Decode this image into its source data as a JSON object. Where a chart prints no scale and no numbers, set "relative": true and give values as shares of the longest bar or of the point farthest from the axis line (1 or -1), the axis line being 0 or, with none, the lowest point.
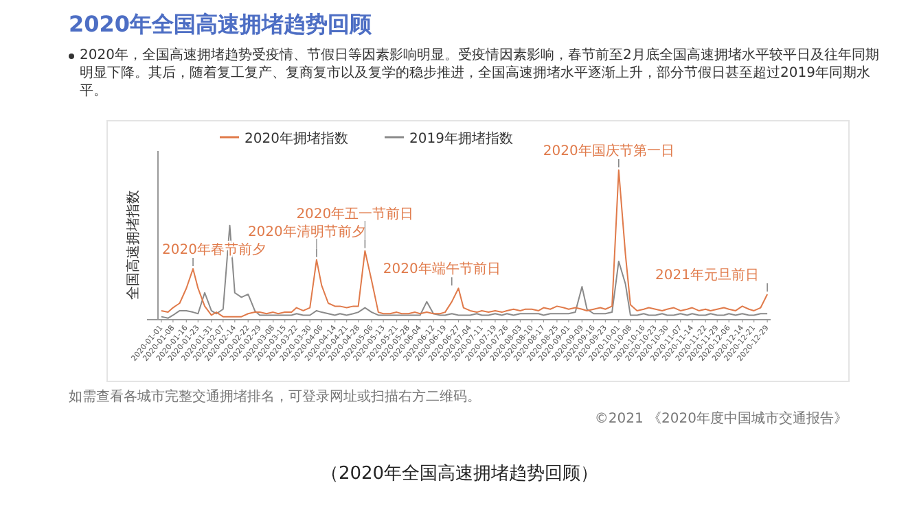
{
  "chart_data": {
    "type": "line",
    "title": "2020年全国高速拥堵趋势回顾",
    "subtitle": "2020年，全国高速拥堵趋势受疫情、节假日等因素影响明显。受疫情因素影响，春节前至2月底全国高速拥堵水平较平日及往年同期明显下降。其后，随着复工复产、复商复市以及复学的稳步推进，全国高速拥堵水平逐渐上升，部分节假日甚至超过2019年同期水平。",
    "ylabel": "全国高速拥堵指数",
    "relative": true,
    "legend": "top",
    "tick_labels": "x",
    "xlim": [
      "2019-12-30",
      "2020-12-31"
    ],
    "xticks": [
      "2020-01-01",
      "2020-01-08",
      "2020-01-16",
      "2020-01-23",
      "2020-01-31",
      "2020-02-07",
      "2020-02-14",
      "2020-02-22",
      "2020-02-29",
      "2020-03-08",
      "2020-03-15",
      "2020-03-22",
      "2020-03-30",
      "2020-04-06",
      "2020-04-14",
      "2020-04-21",
      "2020-04-28",
      "2020-05-06",
      "2020-05-13",
      "2020-05-21",
      "2020-05-28",
      "2020-06-04",
      "2020-06-12",
      "2020-06-19",
      "2020-06-27",
      "2020-07-04",
      "2020-07-11",
      "2020-07-19",
      "2020-07-26",
      "2020-08-03",
      "2020-08-10",
      "2020-08-17",
      "2020-08-25",
      "2020-09-01",
      "2020-09-09",
      "2020-09-16",
      "2020-09-23",
      "2020-10-01",
      "2020-10-08",
      "2020-10-16",
      "2020-10-23",
      "2020-10-30",
      "2020-11-07",
      "2020-11-14",
      "2020-11-22",
      "2020-11-29",
      "2020-12-06",
      "2020-12-14",
      "2020-12-21",
      "2020-12-29"
    ],
    "x": [
      "2020-01-01",
      "2020-01-05",
      "2020-01-08",
      "2020-01-12",
      "2020-01-16",
      "2020-01-20",
      "2020-01-23",
      "2020-01-27",
      "2020-01-31",
      "2020-02-03",
      "2020-02-07",
      "2020-02-11",
      "2020-02-14",
      "2020-02-18",
      "2020-02-22",
      "2020-02-26",
      "2020-02-29",
      "2020-03-04",
      "2020-03-08",
      "2020-03-11",
      "2020-03-15",
      "2020-03-19",
      "2020-03-22",
      "2020-03-26",
      "2020-03-30",
      "2020-04-03",
      "2020-04-06",
      "2020-04-10",
      "2020-04-14",
      "2020-04-17",
      "2020-04-21",
      "2020-04-25",
      "2020-04-28",
      "2020-05-02",
      "2020-05-06",
      "2020-05-10",
      "2020-05-13",
      "2020-05-17",
      "2020-05-21",
      "2020-05-24",
      "2020-05-28",
      "2020-06-01",
      "2020-06-04",
      "2020-06-08",
      "2020-06-12",
      "2020-06-16",
      "2020-06-19",
      "2020-06-23",
      "2020-06-27",
      "2020-06-30",
      "2020-07-04",
      "2020-07-08",
      "2020-07-11",
      "2020-07-15",
      "2020-07-19",
      "2020-07-23",
      "2020-07-26",
      "2020-07-30",
      "2020-08-03",
      "2020-08-06",
      "2020-08-10",
      "2020-08-14",
      "2020-08-17",
      "2020-08-21",
      "2020-08-25",
      "2020-08-29",
      "2020-09-01",
      "2020-09-05",
      "2020-09-09",
      "2020-09-12",
      "2020-09-16",
      "2020-09-20",
      "2020-09-23",
      "2020-09-27",
      "2020-10-01",
      "2020-10-05",
      "2020-10-08",
      "2020-10-12",
      "2020-10-16",
      "2020-10-19",
      "2020-10-23",
      "2020-10-27",
      "2020-10-30",
      "2020-11-03",
      "2020-11-07",
      "2020-11-11",
      "2020-11-14",
      "2020-11-18",
      "2020-11-22",
      "2020-11-25",
      "2020-11-29",
      "2020-12-03",
      "2020-12-06",
      "2020-12-10",
      "2020-12-14",
      "2020-12-18",
      "2020-12-21",
      "2020-12-25",
      "2020-12-29"
    ],
    "series": [
      {
        "name": "2020年拥堵指数",
        "color": "#e07a4a",
        "values": [
          0.06,
          0.05,
          0.08,
          0.11,
          0.21,
          0.34,
          0.21,
          0.09,
          0.03,
          0.05,
          0.02,
          0.02,
          0.02,
          0.02,
          0.04,
          0.05,
          0.05,
          0.04,
          0.05,
          0.04,
          0.05,
          0.05,
          0.08,
          0.06,
          0.08,
          0.4,
          0.23,
          0.11,
          0.09,
          0.09,
          0.08,
          0.09,
          0.09,
          0.46,
          0.26,
          0.05,
          0.04,
          0.04,
          0.05,
          0.04,
          0.04,
          0.05,
          0.04,
          0.05,
          0.04,
          0.04,
          0.05,
          0.12,
          0.21,
          0.08,
          0.06,
          0.05,
          0.06,
          0.05,
          0.06,
          0.05,
          0.06,
          0.07,
          0.06,
          0.07,
          0.07,
          0.06,
          0.08,
          0.07,
          0.09,
          0.08,
          0.07,
          0.08,
          0.07,
          0.06,
          0.07,
          0.08,
          0.07,
          0.09,
          1.0,
          0.44,
          0.1,
          0.06,
          0.07,
          0.08,
          0.07,
          0.06,
          0.07,
          0.08,
          0.06,
          0.07,
          0.08,
          0.06,
          0.07,
          0.06,
          0.07,
          0.08,
          0.07,
          0.06,
          0.09,
          0.07,
          0.06,
          0.08,
          0.17
        ]
      },
      {
        "name": "2019年拥堵指数",
        "color": "#8a8a8a",
        "values": [
          0.02,
          0.01,
          0.03,
          0.06,
          0.06,
          0.05,
          0.04,
          0.18,
          0.06,
          0.04,
          0.07,
          0.63,
          0.18,
          0.15,
          0.17,
          0.06,
          0.03,
          0.03,
          0.03,
          0.03,
          0.03,
          0.03,
          0.04,
          0.03,
          0.03,
          0.06,
          0.05,
          0.04,
          0.03,
          0.04,
          0.03,
          0.04,
          0.05,
          0.08,
          0.05,
          0.03,
          0.03,
          0.03,
          0.03,
          0.03,
          0.03,
          0.03,
          0.03,
          0.12,
          0.04,
          0.03,
          0.03,
          0.04,
          0.03,
          0.03,
          0.03,
          0.04,
          0.03,
          0.03,
          0.04,
          0.03,
          0.04,
          0.03,
          0.04,
          0.04,
          0.04,
          0.04,
          0.03,
          0.04,
          0.04,
          0.04,
          0.04,
          0.05,
          0.22,
          0.07,
          0.04,
          0.04,
          0.04,
          0.05,
          0.39,
          0.24,
          0.03,
          0.03,
          0.04,
          0.03,
          0.03,
          0.04,
          0.03,
          0.03,
          0.04,
          0.03,
          0.04,
          0.03,
          0.03,
          0.04,
          0.03,
          0.03,
          0.04,
          0.03,
          0.04,
          0.03,
          0.03,
          0.04,
          0.04
        ]
      }
    ],
    "annotations": [
      {
        "text": "2020年春节前夕",
        "x": "2020-01-20",
        "y": 0.34
      },
      {
        "text": "2020年清明节前夕",
        "x": "2020-04-03",
        "y": 0.4
      },
      {
        "text": "2020年五一节前日",
        "x": "2020-05-02",
        "y": 0.46
      },
      {
        "text": "2020年端午节前日",
        "x": "2020-06-23",
        "y": 0.21
      },
      {
        "text": "2020年国庆节第一日",
        "x": "2020-10-01",
        "y": 1.0
      },
      {
        "text": "2021年元旦前日",
        "x": "2020-12-29",
        "y": 0.17
      },
      "如需查看各城市完整交通拥堵排名，可登录网址或扫描右方二维码。",
      "©2021 《2020年度中国城市交通报告》",
      "（2020年全国高速拥堵趋势回顾）"
    ]
  }
}
